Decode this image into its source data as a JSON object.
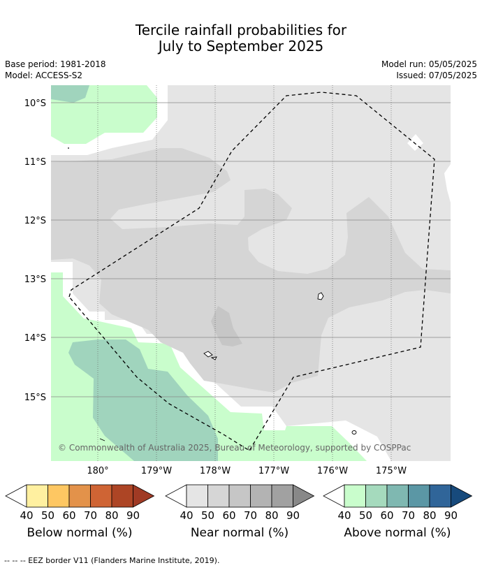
{
  "title_line1": "Tercile rainfall probabilities for",
  "title_line2": "July to September 2025",
  "base_period": "Base period: 1981-2018",
  "model": "Model: ACCESS-S2",
  "model_run": "Model run: 05/05/2025",
  "issued": "Issued: 07/05/2025",
  "copyright": "© Commonwealth of Australia 2025, Bureau of Meteorology, supported by COSPPac",
  "lat_labels": [
    "10°S",
    "11°S",
    "12°S",
    "13°S",
    "14°S",
    "15°S"
  ],
  "lon_labels": [
    "180°",
    "179°W",
    "178°W",
    "177°W",
    "176°W",
    "175°W"
  ],
  "colorbars": [
    {
      "label": "Below normal (%)",
      "ticks": [
        "40",
        "50",
        "60",
        "70",
        "80",
        "90"
      ],
      "under": "#ffffff",
      "colors": [
        "#fff0a0",
        "#fec762",
        "#e3924a",
        "#cf6434",
        "#ad4525"
      ],
      "over": "#a03a24"
    },
    {
      "label": "Near normal (%)",
      "ticks": [
        "40",
        "50",
        "60",
        "70",
        "80",
        "90"
      ],
      "under": "#ffffff",
      "colors": [
        "#e5e5e5",
        "#d6d6d6",
        "#c6c6c6",
        "#b3b3b3",
        "#a1a1a1"
      ],
      "over": "#888888"
    },
    {
      "label": "Above normal (%)",
      "ticks": [
        "40",
        "50",
        "60",
        "70",
        "80",
        "90"
      ],
      "under": "#ffffff",
      "colors": [
        "#c9fdcc",
        "#a5dabd",
        "#7fb8b1",
        "#5b97a5",
        "#306599"
      ],
      "over": "#174a7c"
    }
  ],
  "footnote": "--  --  -- EEZ border V11 (Flanders Marine Institute, 2019)."
}
